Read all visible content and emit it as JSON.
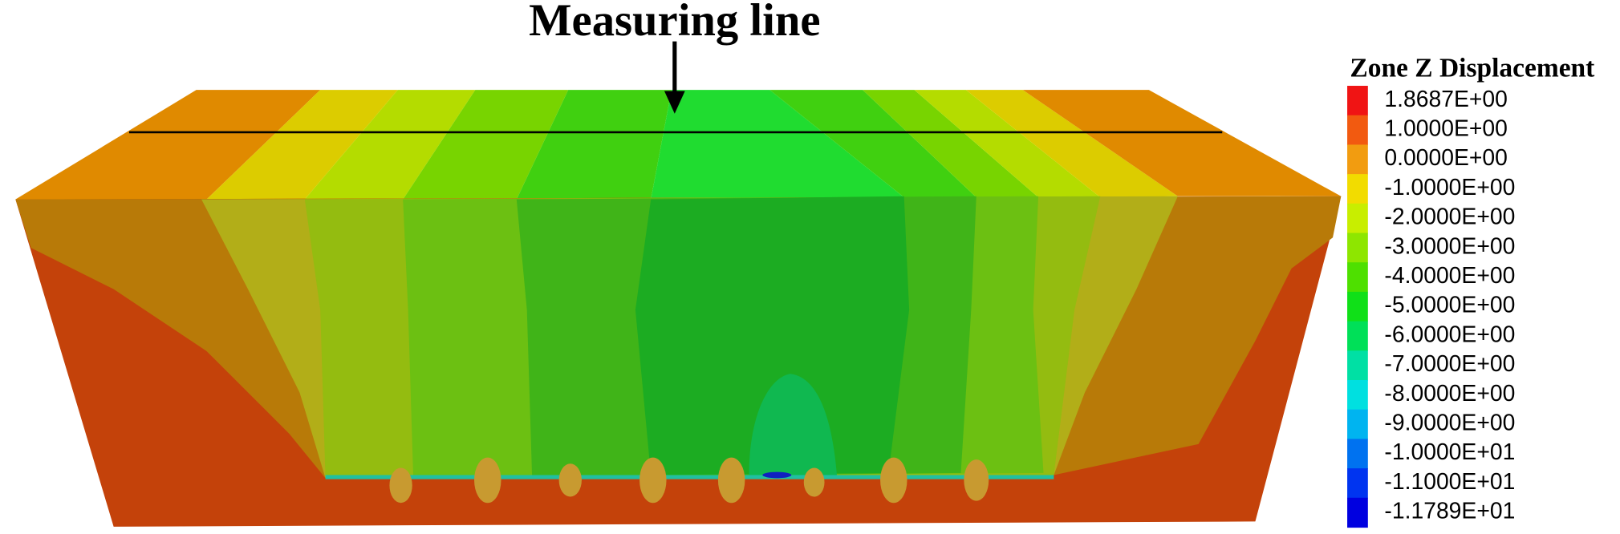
{
  "annotation": "Measuring line",
  "legend": {
    "title": "Zone Z Displacement",
    "entries": [
      {
        "label": "1.8687E+00",
        "color": "#f01414"
      },
      {
        "label": "1.0000E+00",
        "color": "#f25a10"
      },
      {
        "label": "0.0000E+00",
        "color": "#f29c10"
      },
      {
        "label": "-1.0000E+00",
        "color": "#f2dc00"
      },
      {
        "label": "-2.0000E+00",
        "color": "#c8ee00"
      },
      {
        "label": "-3.0000E+00",
        "color": "#8ee600"
      },
      {
        "label": "-4.0000E+00",
        "color": "#4ee000"
      },
      {
        "label": "-5.0000E+00",
        "color": "#10e018"
      },
      {
        "label": "-6.0000E+00",
        "color": "#00e058"
      },
      {
        "label": "-7.0000E+00",
        "color": "#00e0a4"
      },
      {
        "label": "-8.0000E+00",
        "color": "#00e0e0"
      },
      {
        "label": "-9.0000E+00",
        "color": "#00b4f0"
      },
      {
        "label": "-1.0000E+01",
        "color": "#0072f0"
      },
      {
        "label": "-1.1000E+01",
        "color": "#0034f0"
      },
      {
        "label": "-1.1789E+01",
        "color": "#0000e0"
      }
    ]
  }
}
